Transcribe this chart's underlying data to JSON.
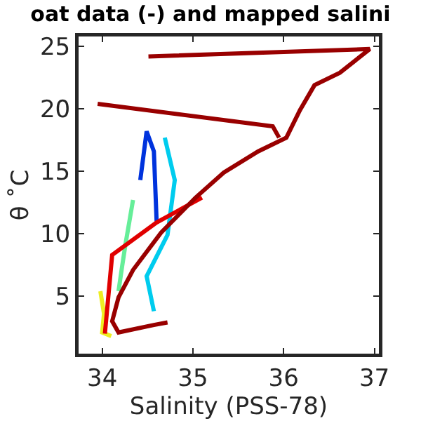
{
  "chart_data": {
    "type": "line",
    "title": "oat data (-) and mapped salini",
    "xlabel": "Salinity (PSS-78)",
    "ylabel": "θ ˚C",
    "xlim": [
      33.74,
      37.05
    ],
    "xticks": [
      34,
      35,
      36,
      37
    ],
    "ylim": [
      0.4,
      25.8
    ],
    "yticks": [
      5,
      10,
      15,
      20,
      25
    ],
    "grid": false,
    "marker": "none",
    "line_style": "solid",
    "series": [
      {
        "color": "#66ee99",
        "x": [
          34.34,
          34.3,
          34.26,
          34.22,
          34.18
        ],
        "values": [
          12.7,
          11.0,
          9.3,
          7.4,
          5.4
        ]
      },
      {
        "color": "#eeee22",
        "x": [
          33.98,
          34.02,
          34.0,
          34.1
        ],
        "values": [
          5.4,
          3.6,
          2.1,
          1.8
        ]
      },
      {
        "color": "#0033dd",
        "x": [
          34.42,
          34.49,
          34.57,
          34.6
        ],
        "values": [
          14.3,
          18.2,
          16.6,
          11.0
        ]
      },
      {
        "color": "#00ccee",
        "x": [
          34.69,
          34.8,
          34.72,
          34.49,
          34.57
        ],
        "values": [
          17.7,
          14.3,
          9.9,
          6.6,
          3.8
        ]
      },
      {
        "color": "#e00000",
        "x": [
          34.03,
          34.11,
          34.6,
          35.1
        ],
        "values": [
          2.0,
          8.3,
          10.9,
          12.9
        ]
      },
      {
        "color": "#990000",
        "x": [
          34.51,
          36.95,
          36.62,
          36.34,
          36.18,
          36.03,
          35.72,
          35.34,
          35.03,
          34.65,
          34.34,
          34.18,
          34.11,
          34.18,
          34.57,
          34.72
        ],
        "values": [
          24.2,
          24.8,
          22.9,
          21.9,
          19.9,
          17.7,
          16.6,
          14.9,
          12.9,
          10.1,
          7.1,
          4.9,
          3.0,
          2.1,
          2.7,
          2.9
        ]
      },
      {
        "color": "#990000",
        "x": [
          33.95,
          35.88,
          35.95
        ],
        "values": [
          20.4,
          18.6,
          17.7
        ]
      }
    ]
  }
}
